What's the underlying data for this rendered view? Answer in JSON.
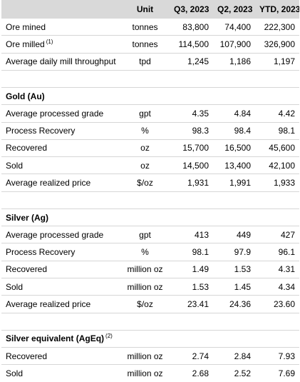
{
  "header": {
    "col_label": "",
    "col_unit": "Unit",
    "col_q3": "Q3, 2023",
    "col_q2": "Q2, 2023",
    "col_ytd": "YTD, 2023"
  },
  "rows": [
    {
      "kind": "data",
      "label": "Ore mined",
      "unit": "tonnes",
      "q3": "83,800",
      "q2": "74,400",
      "ytd": "222,300"
    },
    {
      "kind": "data",
      "label": "Ore milled",
      "footnote": "(1)",
      "unit": "tonnes",
      "q3": "114,500",
      "q2": "107,900",
      "ytd": "326,900"
    },
    {
      "kind": "data",
      "label": "Average daily mill throughput",
      "unit": "tpd",
      "q3": "1,245",
      "q2": "1,186",
      "ytd": "1,197"
    },
    {
      "kind": "blank"
    },
    {
      "kind": "section",
      "label": "Gold (Au)"
    },
    {
      "kind": "data",
      "label": "Average processed grade",
      "unit": "gpt",
      "q3": "4.35",
      "q2": "4.84",
      "ytd": "4.42"
    },
    {
      "kind": "data",
      "label": "Process Recovery",
      "unit": "%",
      "q3": "98.3",
      "q2": "98.4",
      "ytd": "98.1"
    },
    {
      "kind": "data",
      "label": "Recovered",
      "unit": "oz",
      "q3": "15,700",
      "q2": "16,500",
      "ytd": "45,600"
    },
    {
      "kind": "data",
      "label": "Sold",
      "unit": "oz",
      "q3": "14,500",
      "q2": "13,400",
      "ytd": "42,100"
    },
    {
      "kind": "data",
      "label": "Average realized price",
      "unit": "$/oz",
      "q3": "1,931",
      "q2": "1,991",
      "ytd": "1,933"
    },
    {
      "kind": "blank"
    },
    {
      "kind": "section",
      "label": "Silver (Ag)"
    },
    {
      "kind": "data",
      "label": "Average processed grade",
      "unit": "gpt",
      "q3": "413",
      "q2": "449",
      "ytd": "427"
    },
    {
      "kind": "data",
      "label": "Process Recovery",
      "unit": "%",
      "q3": "98.1",
      "q2": "97.9",
      "ytd": "96.1"
    },
    {
      "kind": "data",
      "label": "Recovered",
      "unit": "million oz",
      "q3": "1.49",
      "q2": "1.53",
      "ytd": "4.31"
    },
    {
      "kind": "data",
      "label": "Sold",
      "unit": "million oz",
      "q3": "1.53",
      "q2": "1.45",
      "ytd": "4.34"
    },
    {
      "kind": "data",
      "label": "Average realized price",
      "unit": "$/oz",
      "q3": "23.41",
      "q2": "24.36",
      "ytd": "23.60"
    },
    {
      "kind": "blank"
    },
    {
      "kind": "section",
      "label": "Silver equivalent (AgEq)",
      "footnote": "(2)"
    },
    {
      "kind": "data",
      "label": "Recovered",
      "unit": "million oz",
      "q3": "2.74",
      "q2": "2.84",
      "ytd": "7.93"
    },
    {
      "kind": "data",
      "label": "Sold",
      "unit": "million oz",
      "q3": "2.68",
      "q2": "2.52",
      "ytd": "7.69"
    }
  ]
}
